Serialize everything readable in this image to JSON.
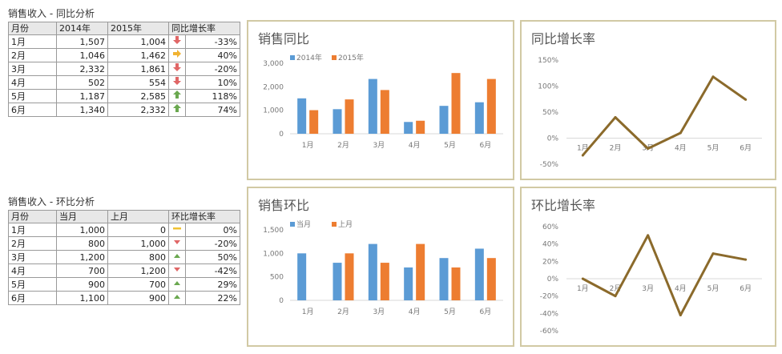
{
  "yoy_table": {
    "title": "销售收入 - 同比分析",
    "headers": [
      "月份",
      "2014年",
      "2015年",
      "同比增长率"
    ],
    "rows": [
      {
        "month": "1月",
        "a": "1,507",
        "b": "1,004",
        "rate": "-33%",
        "icon": "arrow-down-icon",
        "icon_color": "#e06666"
      },
      {
        "month": "2月",
        "a": "1,046",
        "b": "1,462",
        "rate": "40%",
        "icon": "arrow-right-icon",
        "icon_color": "#f1b332"
      },
      {
        "month": "3月",
        "a": "2,332",
        "b": "1,861",
        "rate": "-20%",
        "icon": "arrow-down-icon",
        "icon_color": "#e06666"
      },
      {
        "month": "4月",
        "a": "502",
        "b": "554",
        "rate": "10%",
        "icon": "arrow-down-icon",
        "icon_color": "#e06666"
      },
      {
        "month": "5月",
        "a": "1,187",
        "b": "2,585",
        "rate": "118%",
        "icon": "arrow-up-icon",
        "icon_color": "#6aa84f"
      },
      {
        "month": "6月",
        "a": "1,340",
        "b": "2,332",
        "rate": "74%",
        "icon": "arrow-up-icon",
        "icon_color": "#6aa84f"
      }
    ]
  },
  "mom_table": {
    "title": "销售收入 - 环比分析",
    "headers": [
      "月份",
      "当月",
      "上月",
      "环比增长率"
    ],
    "rows": [
      {
        "month": "1月",
        "a": "1,000",
        "b": "0",
        "rate": "0%",
        "icon": "dash-icon",
        "icon_color": "#f1c232"
      },
      {
        "month": "2月",
        "a": "800",
        "b": "1,000",
        "rate": "-20%",
        "icon": "triangle-down-icon",
        "icon_color": "#e06666"
      },
      {
        "month": "3月",
        "a": "1,200",
        "b": "800",
        "rate": "50%",
        "icon": "triangle-up-icon",
        "icon_color": "#6aa84f"
      },
      {
        "month": "4月",
        "a": "700",
        "b": "1,200",
        "rate": "-42%",
        "icon": "triangle-down-icon",
        "icon_color": "#e06666"
      },
      {
        "month": "5月",
        "a": "900",
        "b": "700",
        "rate": "29%",
        "icon": "triangle-up-icon",
        "icon_color": "#6aa84f"
      },
      {
        "month": "6月",
        "a": "1,100",
        "b": "900",
        "rate": "22%",
        "icon": "triangle-up-icon",
        "icon_color": "#6aa84f"
      }
    ]
  },
  "chart_data": [
    {
      "id": "yoy_bar",
      "type": "bar",
      "title": "销售同比",
      "categories": [
        "1月",
        "2月",
        "3月",
        "4月",
        "5月",
        "6月"
      ],
      "series": [
        {
          "name": "2014年",
          "color": "#5b9bd5",
          "values": [
            1507,
            1046,
            2332,
            502,
            1187,
            1340
          ]
        },
        {
          "name": "2015年",
          "color": "#ed7d31",
          "values": [
            1004,
            1462,
            1861,
            554,
            2585,
            2332
          ]
        }
      ],
      "ylim": [
        0,
        3000
      ],
      "yticks": [
        "0",
        "1,000",
        "2,000",
        "3,000"
      ],
      "legend": "top-left"
    },
    {
      "id": "yoy_line",
      "type": "line",
      "title": "同比增长率",
      "categories": [
        "1月",
        "2月",
        "3月",
        "4月",
        "5月",
        "6月"
      ],
      "series": [
        {
          "color": "#8b6a2b",
          "values": [
            -33,
            40,
            -20,
            10,
            118,
            74
          ]
        }
      ],
      "ylim": [
        -50,
        150
      ],
      "yticks": [
        "-50%",
        "0%",
        "50%",
        "100%",
        "150%"
      ]
    },
    {
      "id": "mom_bar",
      "type": "bar",
      "title": "销售环比",
      "categories": [
        "1月",
        "2月",
        "3月",
        "4月",
        "5月",
        "6月"
      ],
      "series": [
        {
          "name": "当月",
          "color": "#5b9bd5",
          "values": [
            1000,
            800,
            1200,
            700,
            900,
            1100
          ]
        },
        {
          "name": "上月",
          "color": "#ed7d31",
          "values": [
            0,
            1000,
            800,
            1200,
            700,
            900
          ]
        }
      ],
      "ylim": [
        0,
        1500
      ],
      "yticks": [
        "0",
        "500",
        "1,000",
        "1,500"
      ],
      "legend": "top-left"
    },
    {
      "id": "mom_line",
      "type": "line",
      "title": "环比增长率",
      "categories": [
        "1月",
        "2月",
        "3月",
        "4月",
        "5月",
        "6月"
      ],
      "series": [
        {
          "color": "#8b6a2b",
          "values": [
            0,
            -20,
            50,
            -42,
            29,
            22
          ]
        }
      ],
      "ylim": [
        -60,
        60
      ],
      "yticks": [
        "-60%",
        "-40%",
        "-20%",
        "0%",
        "20%",
        "40%",
        "60%"
      ]
    }
  ]
}
